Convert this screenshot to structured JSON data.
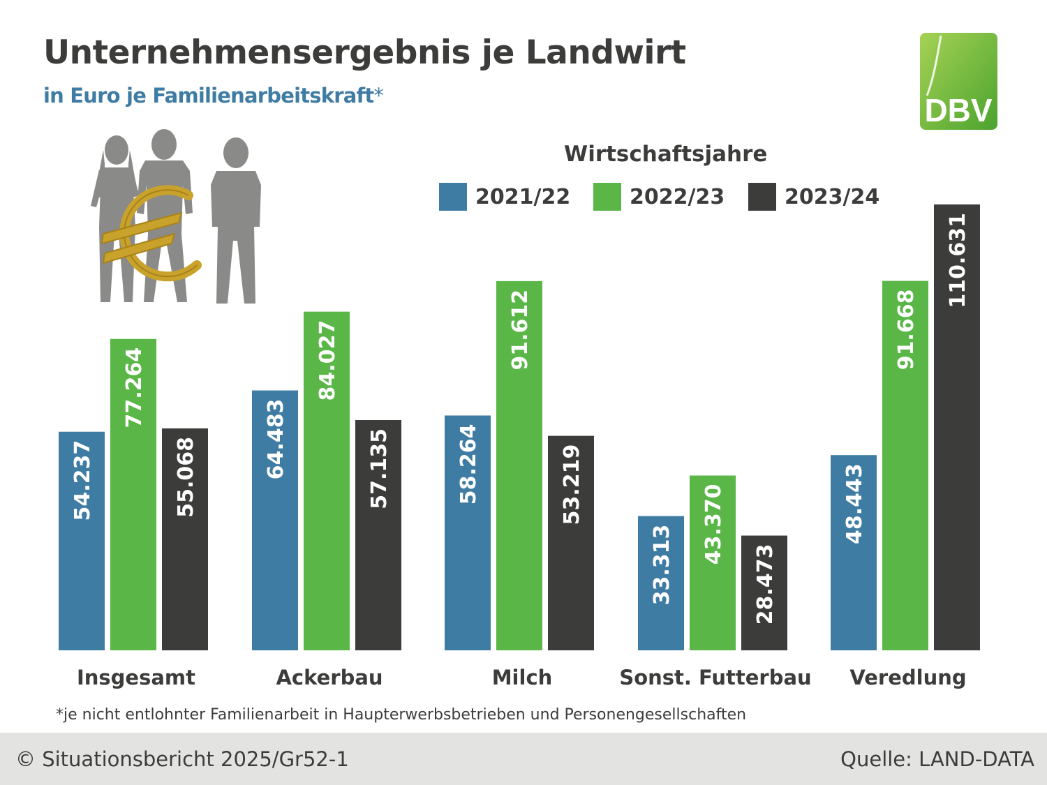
{
  "header": {
    "title": "Unternehmensergebnis je Landwirt",
    "subtitle": "in Euro je Familienarbeitskraft",
    "subtitle_mark": "*"
  },
  "logo": {
    "text": "DBV",
    "colors": {
      "light": "#8cc63f",
      "dark": "#4ba32e"
    }
  },
  "illustration": {
    "icon": "people-with-euro-sign-icon"
  },
  "legend": {
    "title": "Wirtschaftsjahre",
    "items": [
      {
        "label": "2021/22",
        "color": "#3f7ca4"
      },
      {
        "label": "2022/23",
        "color": "#5ab647"
      },
      {
        "label": "2023/24",
        "color": "#3c3c3b"
      }
    ]
  },
  "chart_data": {
    "type": "bar",
    "title": "Unternehmensergebnis je Landwirt",
    "subtitle": "in Euro je Familienarbeitskraft*",
    "legend_title": "Wirtschaftsjahre",
    "legend_position": "top-right",
    "grid": false,
    "categories": [
      "Insgesamt",
      "Ackerbau",
      "Milch",
      "Sonst. Futterbau",
      "Veredlung"
    ],
    "series": [
      {
        "name": "2021/22",
        "color": "#3f7ca4",
        "values": [
          54237,
          64483,
          58264,
          33313,
          48443
        ],
        "labels": [
          "54.237",
          "64.483",
          "58.264",
          "33.313",
          "48.443"
        ]
      },
      {
        "name": "2022/23",
        "color": "#5ab647",
        "values": [
          77264,
          84027,
          91612,
          43370,
          91668
        ],
        "labels": [
          "77.264",
          "84.027",
          "91.612",
          "43.370",
          "91.668"
        ]
      },
      {
        "name": "2023/24",
        "color": "#3c3c3b",
        "values": [
          55068,
          57135,
          53219,
          28473,
          110631
        ],
        "labels": [
          "55.068",
          "57.135",
          "53.219",
          "28.473",
          "110.631"
        ]
      }
    ],
    "ylim": [
      0,
      110631
    ]
  },
  "footnote": "*je nicht entlohnter Familienarbeit in Haupterwerbsbetrieben und Personengesellschaften",
  "footer": {
    "left": "© Situationsbericht 2025/Gr52-1",
    "right": "Quelle: LAND-DATA"
  }
}
